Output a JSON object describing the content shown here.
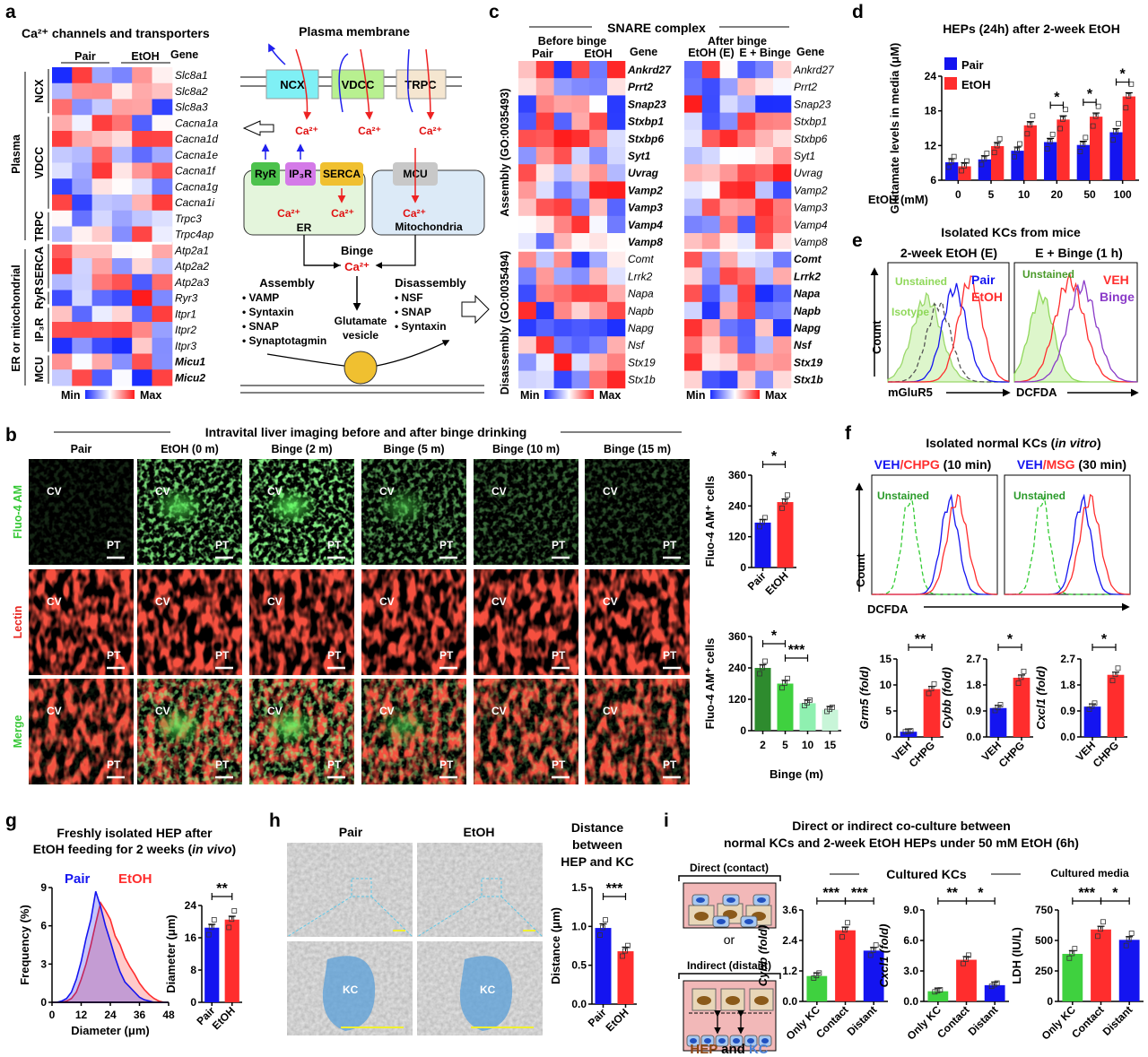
{
  "colors": {
    "pair": "#1414f0",
    "etoh": "#ff2d2d",
    "heat_min": "#1a2cff",
    "heat_mid": "#ffffff",
    "heat_max": "#ff1a1a",
    "green": "#2fd12f",
    "fluo": "#36c836",
    "lectin": "#e8231d",
    "vesicle": "#f0c030"
  },
  "panel_a": {
    "letter": "a",
    "title": "Ca²⁺ channels and transporters",
    "col_pair": "Pair",
    "col_etoh": "EtOH",
    "gene_header": "Gene",
    "genes": [
      "Slc8a1",
      "Slc8a2",
      "Slc8a3",
      "Cacna1a",
      "Cacna1d",
      "Cacna1e",
      "Cacna1f",
      "Cacna1g",
      "Cacna1i",
      "Trpc3",
      "Trpc4ap",
      "Atp2a1",
      "Atp2a2",
      "Atp2a3",
      "Ryr3",
      "Itpr1",
      "Itpr2",
      "Itpr3",
      "Micu1",
      "Micu2"
    ],
    "bold_genes": [
      "Micu1",
      "Micu2"
    ],
    "groups": [
      "NCX",
      "VDCC",
      "TRPC",
      "SERCA",
      "RyR",
      "IP₃R",
      "MCU"
    ],
    "super_groups": [
      "Plasma",
      "ER or mitochondrial"
    ],
    "legend_min": "Min",
    "legend_max": "Max",
    "diagram": {
      "title": "Plasma membrane",
      "channels": [
        "NCX",
        "VDCC",
        "TRPC"
      ],
      "ca": "Ca²⁺",
      "er_proteins": [
        "RyR",
        "IP₃R",
        "SERCA"
      ],
      "er_label": "ER",
      "mcu": "MCU",
      "mito_label": "Mitochondria",
      "binge": "Binge",
      "assembly_title": "Assembly",
      "assembly_items": [
        "VAMP",
        "Syntaxin",
        "SNAP",
        "Synaptotagmin"
      ],
      "disassembly_title": "Disassembly",
      "disassembly_items": [
        "NSF",
        "SNAP",
        "Syntaxin"
      ],
      "vesicle_1": "Glutamate",
      "vesicle_2": "vesicle"
    }
  },
  "panel_c": {
    "letter": "c",
    "title": "SNARE complex",
    "before": "Before binge",
    "after": "After binge",
    "left_cols": [
      "Pair",
      "EtOH"
    ],
    "right_cols": [
      "EtOH (E)",
      "E + Binge"
    ],
    "gene_header": "Gene",
    "assembly_label": "Assembly (GO:0035493)",
    "disassembly_label": "Disassembly (GO:0035494)",
    "genes": [
      "Ankrd27",
      "Prrt2",
      "Snap23",
      "Stxbp1",
      "Stxbp6",
      "Syt1",
      "Uvrag",
      "Vamp2",
      "Vamp3",
      "Vamp4",
      "Vamp8",
      "Comt",
      "Lrrk2",
      "Napa",
      "Napb",
      "Napg",
      "Nsf",
      "Stx19",
      "Stx1b"
    ],
    "legend_min": "Min",
    "legend_max": "Max"
  },
  "panel_d": {
    "letter": "d",
    "title": "HEPs (24h) after 2-week EtOH",
    "xlabel": "EtOH (mM)",
    "legend": [
      "Pair",
      "EtOH"
    ]
  },
  "panel_e": {
    "letter": "e",
    "title": "Isolated KCs from mice",
    "sub1": "2-week EtOH (E)",
    "sub2": "E + Binge (1 h)",
    "unstained": "Unstained",
    "isotype": "Isotype",
    "pair": "Pair",
    "etoh": "EtOH",
    "veh": "VEH",
    "binge": "Binge",
    "ylabel": "Count",
    "xlabel1": "mGluR5",
    "xlabel2": "DCFDA"
  },
  "panel_b": {
    "letter": "b",
    "title": "Intravital liver imaging before and after binge drinking",
    "columns": [
      "Pair",
      "EtOH (0 m)",
      "Binge (2 m)",
      "Binge (5 m)",
      "Binge (10 m)",
      "Binge (15 m)"
    ],
    "rows": [
      "Fluo-4 AM",
      "Lectin",
      "Merge"
    ],
    "region_cv": "CV",
    "region_pt": "PT",
    "xlabel_bottom": "Binge (m)"
  },
  "panel_f": {
    "letter": "f",
    "title_pre": "Isolated normal KCs (",
    "title_em": "in vitro",
    "title_post": ")",
    "sub1_a": "VEH",
    "sub1_b": "/CHPG",
    "sub1_c": " (10 min)",
    "sub2_a": "VEH",
    "sub2_b": "/MSG",
    "sub2_c": " (30 min)",
    "unstained": "Unstained",
    "ylabel": "Count",
    "xlabel": "DCFDA"
  },
  "panel_g": {
    "letter": "g",
    "title1": "Freshly isolated HEP after",
    "title2_pre": "EtOH feeding for 2 weeks (",
    "title2_em": "in vivo",
    "title2_post": ")",
    "legend": [
      "Pair",
      "EtOH"
    ]
  },
  "panel_h": {
    "letter": "h",
    "col_pair": "Pair",
    "col_etoh": "EtOH",
    "kc": "KC",
    "title": [
      "Distance",
      "between",
      "HEP and KC"
    ]
  },
  "panel_i": {
    "letter": "i",
    "title1": "Direct or indirect co-culture between",
    "title2": "normal KCs and 2-week EtOH HEPs under 50 mM EtOH (6h)",
    "direct": "Direct (contact)",
    "or": "or",
    "indirect": "Indirect (distant)",
    "hep": "HEP",
    "and": "and",
    "kc": "KC",
    "cultured_kcs": "Cultured KCs",
    "cultured_media": "Cultured media"
  },
  "chart_data": [
    {
      "id": "d",
      "type": "bar",
      "title": "HEPs (24h) after 2-week EtOH",
      "xlabel": "EtOH (mM)",
      "ylabel": "Glutamate levels in media (μM)",
      "categories": [
        "0",
        "5",
        "10",
        "20",
        "50",
        "100"
      ],
      "ylim": [
        6,
        24
      ],
      "yticks": [
        6,
        12,
        18,
        24
      ],
      "series": [
        {
          "name": "Pair",
          "color": "#1414f0",
          "values": [
            9.1,
            9.6,
            11.1,
            12.6,
            12.1,
            14.3
          ]
        },
        {
          "name": "EtOH",
          "color": "#ff2d2d",
          "values": [
            8.4,
            11.9,
            15.5,
            16.5,
            17.0,
            20.5
          ]
        }
      ],
      "significance": [
        {
          "category": 3,
          "label": "*"
        },
        {
          "category": 4,
          "label": "*"
        },
        {
          "category": 5,
          "label": "*"
        }
      ],
      "legend": "top-left"
    },
    {
      "id": "b1",
      "type": "bar",
      "ylabel": "Fluo-4 AM⁺ cells",
      "categories": [
        "Pair",
        "EtOH"
      ],
      "ylim": [
        0,
        360
      ],
      "yticks": [
        0,
        120,
        240,
        360
      ],
      "series": [
        {
          "colors": [
            "#1414f0",
            "#ff2d2d"
          ],
          "values": [
            175,
            255
          ]
        }
      ],
      "significance": [
        {
          "from": 0,
          "to": 1,
          "label": "*"
        }
      ]
    },
    {
      "id": "b2",
      "type": "bar",
      "ylabel": "Fluo-4 AM⁺ cells",
      "xlabel": "Binge (m)",
      "categories": [
        "2",
        "5",
        "10",
        "15"
      ],
      "ylim": [
        0,
        360
      ],
      "yticks": [
        0,
        120,
        240,
        360
      ],
      "series": [
        {
          "colors": [
            "#2e8b2e",
            "#3fd13f",
            "#8ff0b0",
            "#c8f5d8"
          ],
          "values": [
            240,
            180,
            105,
            80
          ]
        }
      ],
      "significance": [
        {
          "from": 0,
          "to": 1,
          "label": "*"
        },
        {
          "from": 1,
          "to": 2,
          "label": "***"
        }
      ]
    },
    {
      "id": "f1",
      "type": "bar",
      "ylabel": "Grm5 (fold)",
      "categories": [
        "VEH",
        "CHPG"
      ],
      "ylim": [
        0,
        15
      ],
      "yticks": [
        0,
        5,
        10,
        15
      ],
      "series": [
        {
          "colors": [
            "#1414f0",
            "#ff2d2d"
          ],
          "values": [
            1.0,
            9.2
          ]
        }
      ],
      "significance": [
        {
          "from": 0,
          "to": 1,
          "label": "**"
        }
      ]
    },
    {
      "id": "f2",
      "type": "bar",
      "ylabel": "Cybb (fold)",
      "categories": [
        "VEH",
        "CHPG"
      ],
      "ylim": [
        0,
        2.7
      ],
      "yticks": [
        0.0,
        0.9,
        1.8,
        2.7
      ],
      "series": [
        {
          "colors": [
            "#1414f0",
            "#ff2d2d"
          ],
          "values": [
            1.0,
            2.05
          ]
        }
      ],
      "significance": [
        {
          "from": 0,
          "to": 1,
          "label": "*"
        }
      ]
    },
    {
      "id": "f3",
      "type": "bar",
      "ylabel": "Cxcl1 (fold)",
      "categories": [
        "VEH",
        "CHPG"
      ],
      "ylim": [
        0,
        2.7
      ],
      "yticks": [
        0.0,
        0.9,
        1.8,
        2.7
      ],
      "series": [
        {
          "colors": [
            "#1414f0",
            "#ff2d2d"
          ],
          "values": [
            1.05,
            2.15
          ]
        }
      ],
      "significance": [
        {
          "from": 0,
          "to": 1,
          "label": "*"
        }
      ]
    },
    {
      "id": "g1",
      "type": "area",
      "xlabel": "Diameter (μm)",
      "ylabel": "Frequency (%)",
      "xlim": [
        0,
        48
      ],
      "ylim": [
        0,
        9
      ],
      "xticks": [
        0,
        12,
        24,
        36,
        48
      ],
      "yticks": [
        0,
        3,
        6,
        9
      ],
      "x": [
        0,
        2,
        4,
        6,
        8,
        10,
        12,
        14,
        16,
        18,
        20,
        22,
        24,
        26,
        28,
        30,
        32,
        34,
        36,
        38,
        40,
        42,
        44,
        46,
        48
      ],
      "series": [
        {
          "name": "Pair",
          "color": "#1414f0",
          "values": [
            0,
            0,
            0.1,
            0.3,
            0.8,
            1.8,
            3.2,
            5,
            6.5,
            8.7,
            7.5,
            6,
            4.8,
            3.5,
            2.4,
            1.6,
            1.2,
            0.8,
            0.4,
            0.2,
            0.1,
            0,
            0,
            0,
            0
          ]
        },
        {
          "name": "EtOH",
          "color": "#ff2d2d",
          "values": [
            0,
            0,
            0,
            0.1,
            0.3,
            0.8,
            1.8,
            3,
            4.5,
            6.2,
            7.8,
            7.2,
            6.5,
            5.2,
            4.5,
            3.5,
            2.8,
            2.2,
            1.5,
            1,
            0.6,
            0.3,
            0.1,
            0,
            0
          ]
        }
      ],
      "legend": "top"
    },
    {
      "id": "g2",
      "type": "bar",
      "ylabel": "Diameter (μm)",
      "categories": [
        "Pair",
        "EtOH"
      ],
      "ylim": [
        0,
        24
      ],
      "yticks": [
        0,
        8,
        16,
        24
      ],
      "series": [
        {
          "colors": [
            "#1414f0",
            "#ff2d2d"
          ],
          "values": [
            18.5,
            20.5
          ]
        }
      ],
      "significance": [
        {
          "from": 0,
          "to": 1,
          "label": "**"
        }
      ]
    },
    {
      "id": "h1",
      "type": "bar",
      "title": "Distance between HEP and KC",
      "ylabel": "Distance (μm)",
      "categories": [
        "Pair",
        "EtOH"
      ],
      "ylim": [
        0,
        1.5
      ],
      "yticks": [
        0.0,
        0.5,
        1.0,
        1.5
      ],
      "series": [
        {
          "colors": [
            "#1414f0",
            "#ff2d2d"
          ],
          "values": [
            0.98,
            0.68
          ]
        }
      ],
      "significance": [
        {
          "from": 0,
          "to": 1,
          "label": "***"
        }
      ]
    },
    {
      "id": "i1",
      "type": "bar",
      "ylabel": "Cybb (fold)",
      "categories": [
        "Only KC",
        "Contact",
        "Distant"
      ],
      "ylim": [
        0,
        3.6
      ],
      "yticks": [
        0.0,
        1.2,
        2.4,
        3.6
      ],
      "series": [
        {
          "colors": [
            "#3fd13f",
            "#ff2d2d",
            "#1414f0"
          ],
          "values": [
            1.0,
            2.8,
            2.0
          ]
        }
      ],
      "significance": [
        {
          "from": 0,
          "to": 1,
          "label": "***"
        },
        {
          "from": 1,
          "to": 2,
          "label": "***"
        }
      ]
    },
    {
      "id": "i2",
      "type": "bar",
      "ylabel": "Cxcl1 (fold)",
      "categories": [
        "Only KC",
        "Contact",
        "Distant"
      ],
      "ylim": [
        0,
        9
      ],
      "yticks": [
        0.0,
        3.0,
        6.0,
        9.0
      ],
      "series": [
        {
          "colors": [
            "#3fd13f",
            "#ff2d2d",
            "#1414f0"
          ],
          "values": [
            1.0,
            4.1,
            1.6
          ]
        }
      ],
      "significance": [
        {
          "from": 0,
          "to": 1,
          "label": "**"
        },
        {
          "from": 1,
          "to": 2,
          "label": "*"
        }
      ]
    },
    {
      "id": "i3",
      "type": "bar",
      "ylabel": "LDH (IU/L)",
      "categories": [
        "Only KC",
        "Contact",
        "Distant"
      ],
      "ylim": [
        0,
        750
      ],
      "yticks": [
        0,
        250,
        500,
        750
      ],
      "series": [
        {
          "colors": [
            "#3fd13f",
            "#ff2d2d",
            "#1414f0"
          ],
          "values": [
            390,
            590,
            505
          ]
        }
      ],
      "significance": [
        {
          "from": 0,
          "to": 1,
          "label": "***"
        },
        {
          "from": 1,
          "to": 2,
          "label": "*"
        }
      ]
    }
  ]
}
